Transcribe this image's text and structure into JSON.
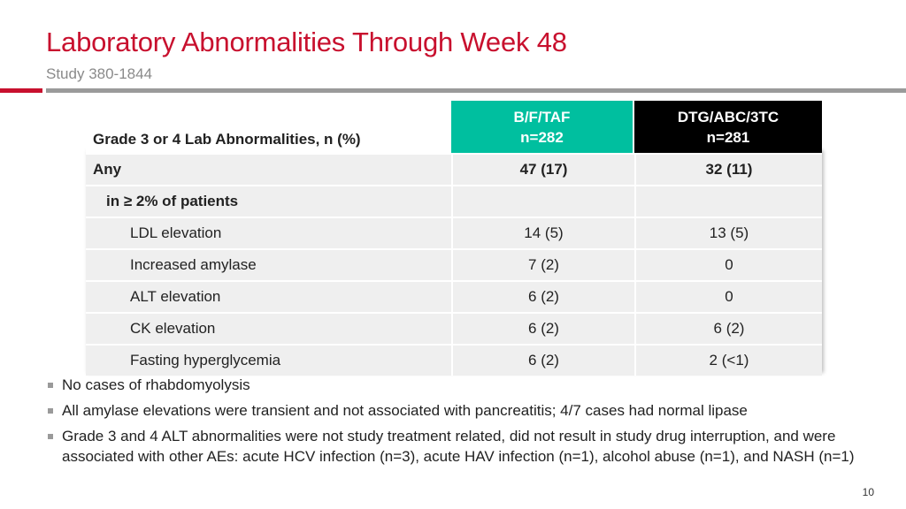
{
  "slide": {
    "title": "Laboratory Abnormalities Through Week 48",
    "subtitle": "Study 380-1844",
    "page_number": "10"
  },
  "table": {
    "header_label": "Grade 3 or 4 Lab Abnormalities, n (%)",
    "arm_a": {
      "name": "B/F/TAF",
      "n": "n=282",
      "color": "#00bf9f"
    },
    "arm_b": {
      "name": "DTG/ABC/3TC",
      "n": "n=281",
      "color": "#000000"
    },
    "rows": [
      {
        "label": "Any",
        "a": "47 (17)",
        "b": "32 (11)"
      },
      {
        "label": "in ≥ 2% of patients",
        "a": "",
        "b": ""
      },
      {
        "label": "LDL elevation",
        "a": "14 (5)",
        "b": "13 (5)"
      },
      {
        "label": "Increased amylase",
        "a": "7 (2)",
        "b": "0"
      },
      {
        "label": "ALT elevation",
        "a": "6 (2)",
        "b": "0"
      },
      {
        "label": "CK elevation",
        "a": "6 (2)",
        "b": "6 (2)"
      },
      {
        "label": "Fasting hyperglycemia",
        "a": "6 (2)",
        "b": "2 (<1)"
      }
    ]
  },
  "bullets": [
    "No cases of rhabdomyolysis",
    "All amylase elevations were transient and not associated with pancreatitis; 4/7 cases had normal lipase",
    "Grade 3 and 4 ALT abnormalities were not study treatment related, did not result in study drug interruption, and were associated with other AEs: acute HCV infection (n=3), acute HAV infection (n=1), alcohol abuse (n=1), and NASH (n=1)"
  ],
  "colors": {
    "title": "#c8102e",
    "accent_rule": "#c8102e",
    "divider": "#9a9a9a",
    "row_bg": "#efefef"
  }
}
